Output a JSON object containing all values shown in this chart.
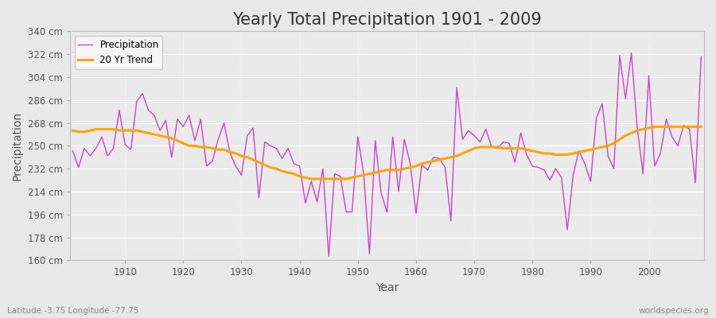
{
  "title": "Yearly Total Precipitation 1901 - 2009",
  "xlabel": "Year",
  "ylabel": "Precipitation",
  "lat_lon_label": "Latitude -3.75 Longitude -77.75",
  "watermark": "worldspecies.org",
  "years": [
    1901,
    1902,
    1903,
    1904,
    1905,
    1906,
    1907,
    1908,
    1909,
    1910,
    1911,
    1912,
    1913,
    1914,
    1915,
    1916,
    1917,
    1918,
    1919,
    1920,
    1921,
    1922,
    1923,
    1924,
    1925,
    1926,
    1927,
    1928,
    1929,
    1930,
    1931,
    1932,
    1933,
    1934,
    1935,
    1936,
    1937,
    1938,
    1939,
    1940,
    1941,
    1942,
    1943,
    1944,
    1945,
    1946,
    1947,
    1948,
    1949,
    1950,
    1951,
    1952,
    1953,
    1954,
    1955,
    1956,
    1957,
    1958,
    1959,
    1960,
    1961,
    1962,
    1963,
    1964,
    1965,
    1966,
    1967,
    1968,
    1969,
    1970,
    1971,
    1972,
    1973,
    1974,
    1975,
    1976,
    1977,
    1978,
    1979,
    1980,
    1981,
    1982,
    1983,
    1984,
    1985,
    1986,
    1987,
    1988,
    1989,
    1990,
    1991,
    1992,
    1993,
    1994,
    1995,
    1996,
    1997,
    1998,
    1999,
    2000,
    2001,
    2002,
    2003,
    2004,
    2005,
    2006,
    2007,
    2008,
    2009
  ],
  "precip": [
    246,
    233,
    248,
    242,
    248,
    257,
    242,
    248,
    278,
    251,
    247,
    285,
    291,
    278,
    274,
    262,
    270,
    241,
    271,
    265,
    274,
    254,
    271,
    234,
    238,
    255,
    268,
    245,
    234,
    227,
    258,
    264,
    209,
    253,
    250,
    248,
    240,
    248,
    236,
    234,
    205,
    222,
    206,
    232,
    163,
    228,
    226,
    198,
    198,
    257,
    228,
    165,
    254,
    213,
    198,
    257,
    214,
    255,
    236,
    197,
    235,
    231,
    241,
    240,
    233,
    191,
    296,
    255,
    262,
    258,
    253,
    263,
    249,
    248,
    253,
    252,
    237,
    260,
    243,
    234,
    233,
    231,
    223,
    232,
    225,
    184,
    227,
    246,
    236,
    222,
    272,
    283,
    242,
    232,
    321,
    287,
    323,
    265,
    228,
    305,
    234,
    244,
    271,
    257,
    250,
    266,
    263,
    221,
    320
  ],
  "trend": [
    262,
    261,
    261,
    262,
    263,
    263,
    263,
    263,
    262,
    262,
    262,
    262,
    261,
    260,
    259,
    258,
    257,
    256,
    254,
    252,
    250,
    250,
    249,
    249,
    248,
    247,
    247,
    245,
    244,
    242,
    241,
    239,
    237,
    235,
    233,
    232,
    230,
    229,
    228,
    226,
    225,
    224,
    224,
    224,
    224,
    224,
    224,
    224,
    225,
    226,
    227,
    228,
    229,
    230,
    231,
    231,
    231,
    232,
    233,
    234,
    236,
    237,
    238,
    239,
    240,
    241,
    242,
    244,
    246,
    248,
    249,
    249,
    249,
    249,
    248,
    248,
    248,
    248,
    247,
    246,
    245,
    244,
    244,
    243,
    243,
    243,
    244,
    245,
    246,
    247,
    248,
    249,
    250,
    252,
    255,
    258,
    260,
    262,
    263,
    264,
    265,
    265,
    265,
    265,
    265,
    265,
    265,
    265,
    265
  ],
  "precip_color": "#cc44cc",
  "trend_color": "#FFA500",
  "bg_color": "#e8e8e8",
  "plot_bg_color": "#eaeaea",
  "grid_color": "#ffffff",
  "ylim_min": 160,
  "ylim_max": 340,
  "ytick_step": 18,
  "title_fontsize": 15,
  "axis_label_fontsize": 10,
  "tick_fontsize": 8.5,
  "legend_fontsize": 8.5
}
